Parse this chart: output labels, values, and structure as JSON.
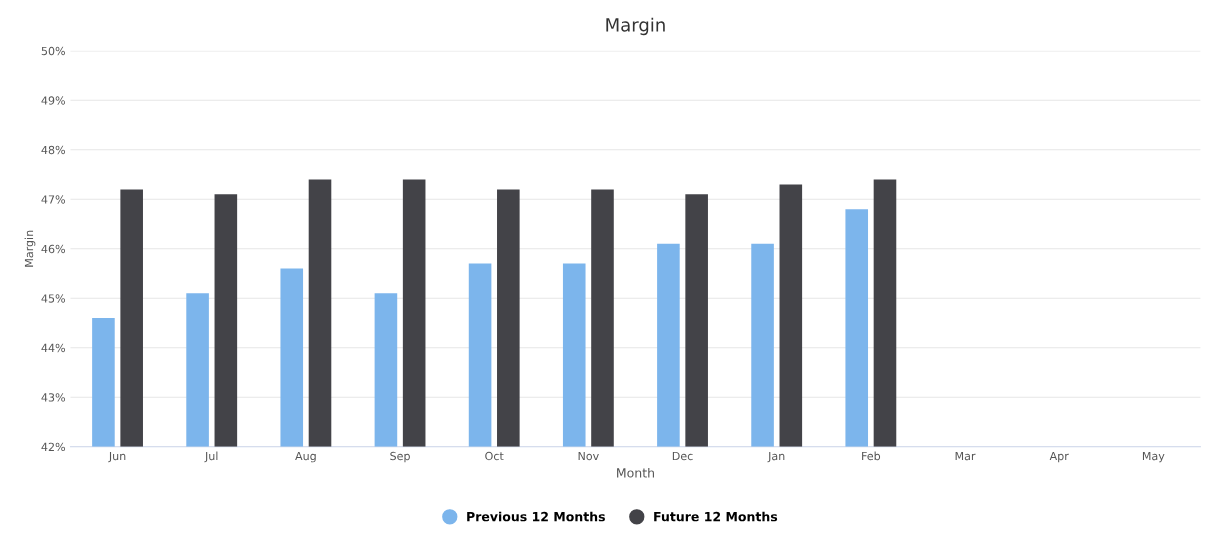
{
  "chart_data": {
    "type": "bar",
    "title": "Margin",
    "xlabel": "Month",
    "ylabel": "Margin",
    "categories": [
      "Jun",
      "Jul",
      "Aug",
      "Sep",
      "Oct",
      "Nov",
      "Dec",
      "Jan",
      "Feb",
      "Mar",
      "Apr",
      "May"
    ],
    "series": [
      {
        "name": "Previous 12 Months",
        "color": "#7cb5ec",
        "values": [
          44.6,
          45.1,
          45.6,
          45.1,
          45.7,
          45.7,
          46.1,
          46.1,
          46.8,
          null,
          null,
          null
        ]
      },
      {
        "name": "Future 12 Months",
        "color": "#434348",
        "values": [
          47.2,
          47.1,
          47.4,
          47.4,
          47.2,
          47.2,
          47.1,
          47.3,
          47.4,
          null,
          null,
          null
        ]
      }
    ],
    "ylim": [
      42,
      50
    ],
    "yticks": [
      {
        "value": 42,
        "label": "42%"
      },
      {
        "value": 43,
        "label": "43%"
      },
      {
        "value": 44,
        "label": "44%"
      },
      {
        "value": 45,
        "label": "45%"
      },
      {
        "value": 46,
        "label": "46%"
      },
      {
        "value": 47,
        "label": "47%"
      },
      {
        "value": 48,
        "label": "48%"
      },
      {
        "value": 49,
        "label": "49%"
      },
      {
        "value": 50,
        "label": "50%"
      }
    ],
    "grid": "y",
    "legend": "bottom",
    "marker": "circle"
  }
}
